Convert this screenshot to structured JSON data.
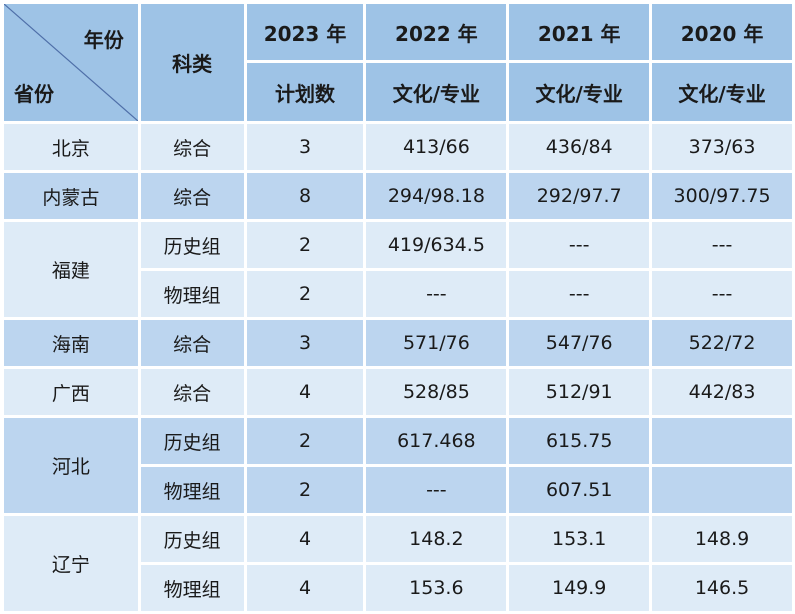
{
  "header": {
    "year_label": "年份",
    "province_label": "省份",
    "category_label": "科类",
    "years": [
      "2023 年",
      "2022 年",
      "2021 年",
      "2020 年"
    ],
    "sub": [
      "计划数",
      "文化/专业",
      "文化/专业",
      "文化/专业"
    ]
  },
  "rows": [
    {
      "province": "北京",
      "category": "综合",
      "plan": "3",
      "y2022": "413/66",
      "y2021": "436/84",
      "y2020": "373/63"
    },
    {
      "province": "内蒙古",
      "category": "综合",
      "plan": "8",
      "y2022": "294/98.18",
      "y2021": "292/97.7",
      "y2020": "300/97.75"
    },
    {
      "province": "福建",
      "category": "历史组",
      "plan": "2",
      "y2022": "419/634.5",
      "y2021": "---",
      "y2020": "---"
    },
    {
      "province": "",
      "category": "物理组",
      "plan": "2",
      "y2022": "---",
      "y2021": "---",
      "y2020": "---"
    },
    {
      "province": "海南",
      "category": "综合",
      "plan": "3",
      "y2022": "571/76",
      "y2021": "547/76",
      "y2020": "522/72"
    },
    {
      "province": "广西",
      "category": "综合",
      "plan": "4",
      "y2022": "528/85",
      "y2021": "512/91",
      "y2020": "442/83"
    },
    {
      "province": "河北",
      "category": "历史组",
      "plan": "2",
      "y2022": "617.468",
      "y2021": "615.75",
      "y2020": ""
    },
    {
      "province": "",
      "category": "物理组",
      "plan": "2",
      "y2022": "---",
      "y2021": "607.51",
      "y2020": ""
    },
    {
      "province": "辽宁",
      "category": "历史组",
      "plan": "4",
      "y2022": "148.2",
      "y2021": "153.1",
      "y2020": "148.9"
    },
    {
      "province": "",
      "category": "物理组",
      "plan": "4",
      "y2022": "153.6",
      "y2021": "149.9",
      "y2020": "146.5"
    }
  ]
}
